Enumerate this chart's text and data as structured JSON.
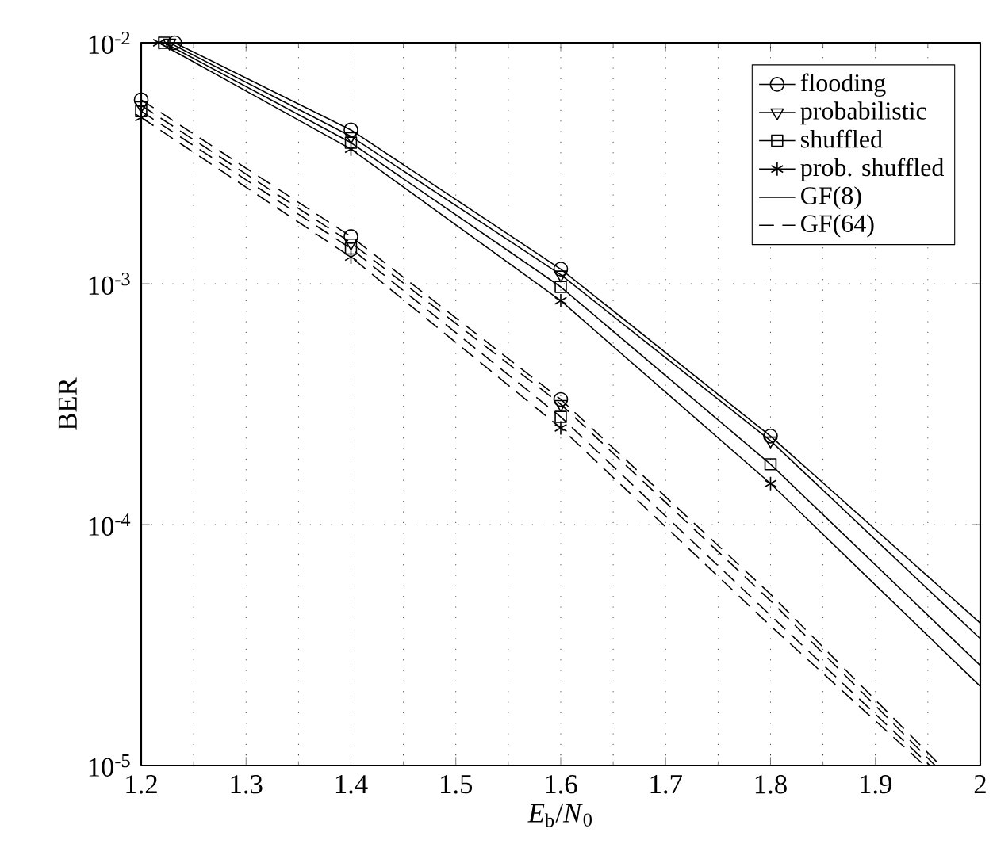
{
  "chart_data": {
    "type": "line",
    "xlabel": "*E*$_{b}$/*N*$_{0}$",
    "ylabel": "BER",
    "log": "y",
    "xlim": [
      1.2,
      2.0
    ],
    "xticks": [
      1.2,
      1.3,
      1.4,
      1.5,
      1.6,
      1.7,
      1.8,
      1.9,
      2
    ],
    "ylim": [
      1e-05,
      0.01
    ],
    "yticks": [
      {
        "value": 1e-05,
        "label": "10$^{-5}$"
      },
      {
        "value": 0.0001,
        "label": "10$^{-4}$"
      },
      {
        "value": 0.001,
        "label": "10$^{-3}$"
      },
      {
        "value": 0.01,
        "label": "10$^{-2}$"
      }
    ],
    "grid": true,
    "legend": "top right",
    "annotations": [
      "GF(8)",
      "GF(64)"
    ],
    "series": [
      {
        "name": "flooding",
        "color": "#000000",
        "marker": "circle",
        "line_style": "solid",
        "x": [
          1.232,
          1.4,
          1.6,
          1.8,
          2.0
        ],
        "values": [
          0.01,
          0.00435,
          0.00115,
          0.000233,
          3.9e-05
        ]
      },
      {
        "name": "probabilistic",
        "color": "#000000",
        "marker": "triangle",
        "line_style": "solid",
        "x": [
          1.227,
          1.4,
          1.6,
          1.8,
          2.0
        ],
        "values": [
          0.01,
          0.00409,
          0.00109,
          0.000223,
          3.36e-05
        ]
      },
      {
        "name": "shuffled",
        "color": "#000000",
        "marker": "square",
        "line_style": "solid",
        "x": [
          1.222,
          1.4,
          1.6,
          1.8,
          2.0
        ],
        "values": [
          0.01,
          0.00385,
          0.00097,
          0.000178,
          2.6e-05
        ]
      },
      {
        "name": "prob. shuffled",
        "color": "#000000",
        "marker": "cross",
        "line_style": "solid",
        "x": [
          1.217,
          1.4,
          1.6,
          1.8,
          2.0
        ],
        "values": [
          0.01,
          0.00362,
          0.00085,
          0.000148,
          2.13e-05
        ]
      },
      {
        "color": "#000000",
        "marker": "circle",
        "line_style": "dashed",
        "x": [
          1.2,
          1.4,
          1.6,
          1.8,
          1.962
        ],
        "values": [
          0.0058,
          0.00157,
          0.000331,
          5.14e-05,
          1e-05
        ]
      },
      {
        "color": "#000000",
        "marker": "triangle",
        "line_style": "dashed",
        "x": [
          1.2,
          1.4,
          1.6,
          1.8,
          1.957
        ],
        "values": [
          0.0055,
          0.00148,
          0.000316,
          4.83e-05,
          1e-05
        ]
      },
      {
        "color": "#000000",
        "marker": "square",
        "line_style": "dashed",
        "x": [
          1.2,
          1.4,
          1.6,
          1.8,
          1.952
        ],
        "values": [
          0.0052,
          0.0014,
          0.00028,
          4.2e-05,
          1e-05
        ]
      },
      {
        "color": "#000000",
        "marker": "cross",
        "line_style": "dashed",
        "x": [
          1.2,
          1.4,
          1.6,
          1.8,
          1.947
        ],
        "values": [
          0.0049,
          0.00129,
          0.000252,
          3.8e-05,
          1e-05
        ]
      }
    ]
  }
}
